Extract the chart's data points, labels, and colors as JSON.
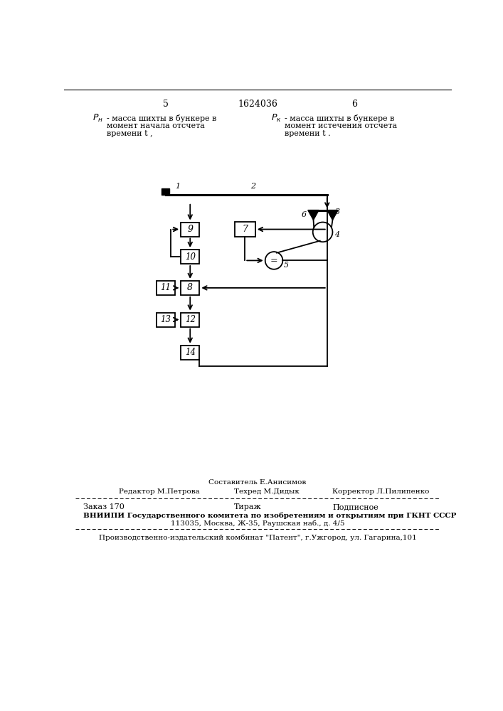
{
  "title_page_num_left": "5",
  "title_patent": "1624036",
  "title_page_num_right": "6",
  "left_symbol": "P_н",
  "left_text_line1": "- масса шихты в бункере в",
  "left_text_line2": "момент начала отсчета",
  "left_text_line3": "времени t ,",
  "right_symbol": "P_к",
  "right_text_line1": "- масса шихты в бункере в",
  "right_text_line2": "момент истечения отсчета",
  "right_text_line3": "времени t .",
  "footer_composer": "Составитель Е.Анисимов",
  "footer_editor": "Редактор М.Петрова",
  "footer_techred": "Техред М.Дидык",
  "footer_corrector": "Корректор Л.Пилипенко",
  "footer_order": "Заказ 170",
  "footer_tiraz": "Тираж",
  "footer_podpisnoe": "Подписное",
  "footer_vnipi": "ВНИИПИ Государственного комитета по изобретениям и открытиям при ГКНТ СССР",
  "footer_address": "113035, Москва, Ж-35, Раушская наб., д. 4/5",
  "footer_plant": "Производственно-издательский комбинат \"Патент\", г.Ужгород, ул. Гагарина,101",
  "bg_color": "#ffffff",
  "line_color": "#000000"
}
